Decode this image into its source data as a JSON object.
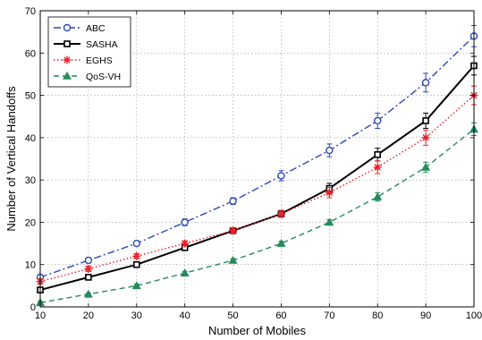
{
  "chart_data": {
    "type": "line",
    "xlabel": "Number of Mobiles",
    "ylabel": "Number of Vertical Handoffs",
    "xlim": [
      10,
      100
    ],
    "ylim": [
      0,
      70
    ],
    "x_ticks": [
      10,
      20,
      30,
      40,
      50,
      60,
      70,
      80,
      90,
      100
    ],
    "y_ticks": [
      0,
      10,
      20,
      30,
      40,
      50,
      60,
      70
    ],
    "grid": true,
    "legend_position": "top-left",
    "x": [
      10,
      20,
      30,
      40,
      50,
      60,
      70,
      80,
      90,
      100
    ],
    "series": [
      {
        "name": "ABC",
        "values": [
          7,
          11,
          15,
          20,
          25,
          31,
          37,
          44,
          53,
          64
        ],
        "errors": [
          0.6,
          0.6,
          0.6,
          0.8,
          0.8,
          1.2,
          1.5,
          1.8,
          2.2,
          2.5
        ],
        "color": "#2d47b4",
        "line_style": "dash-dot",
        "marker": "circle"
      },
      {
        "name": "SASHA",
        "values": [
          4,
          7,
          10,
          14,
          18,
          22,
          28,
          36,
          44,
          57
        ],
        "errors": [
          0.5,
          0.5,
          0.5,
          0.6,
          0.6,
          0.8,
          1.2,
          1.5,
          1.8,
          2.2
        ],
        "color": "#000000",
        "line_style": "solid",
        "marker": "square"
      },
      {
        "name": "EGHS",
        "values": [
          6,
          9,
          12,
          15,
          18,
          22,
          27,
          33,
          40,
          50
        ],
        "errors": [
          0.6,
          0.6,
          0.6,
          0.6,
          0.6,
          0.8,
          1.2,
          1.5,
          1.8,
          2.2
        ],
        "color": "#e8202a",
        "line_style": "dotted",
        "marker": "asterisk"
      },
      {
        "name": "QoS-VH",
        "values": [
          1,
          3,
          5,
          8,
          11,
          15,
          20,
          26,
          33,
          42
        ],
        "errors": [
          0.3,
          0.3,
          0.4,
          0.4,
          0.4,
          0.5,
          0.6,
          1.0,
          1.2,
          1.5
        ],
        "color": "#268a5a",
        "line_style": "dashed",
        "marker": "triangle"
      }
    ]
  }
}
